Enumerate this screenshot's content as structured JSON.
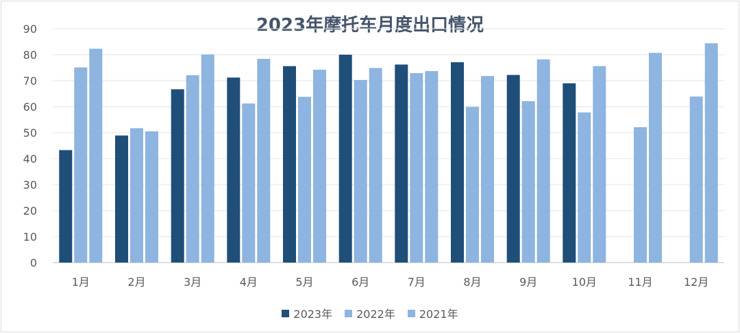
{
  "chart_data": {
    "type": "bar",
    "title": "2023年摩托车月度出口情况",
    "categories": [
      "1月",
      "2月",
      "3月",
      "4月",
      "5月",
      "6月",
      "7月",
      "8月",
      "9月",
      "10月",
      "11月",
      "12月"
    ],
    "series": [
      {
        "name": "2023年",
        "color": "#1f4e79",
        "values": [
          43.3,
          48.9,
          66.7,
          71.2,
          75.6,
          80.0,
          76.2,
          77.1,
          72.2,
          69.0,
          null,
          null
        ]
      },
      {
        "name": "2022年",
        "color": "#8eb4e0",
        "values": [
          75.1,
          51.7,
          72.1,
          61.2,
          63.8,
          70.3,
          72.9,
          59.9,
          62.1,
          57.8,
          52.1,
          63.9
        ]
      },
      {
        "name": "2021年",
        "color": "#8eb4e0",
        "values": [
          82.3,
          50.5,
          80.1,
          78.4,
          74.2,
          74.9,
          73.7,
          71.8,
          78.2,
          75.6,
          80.7,
          84.4
        ]
      }
    ],
    "ylim": [
      0,
      90
    ],
    "yticks": [
      0,
      10,
      20,
      30,
      40,
      50,
      60,
      70,
      80,
      90
    ],
    "grid": true,
    "legend_position": "bottom"
  }
}
